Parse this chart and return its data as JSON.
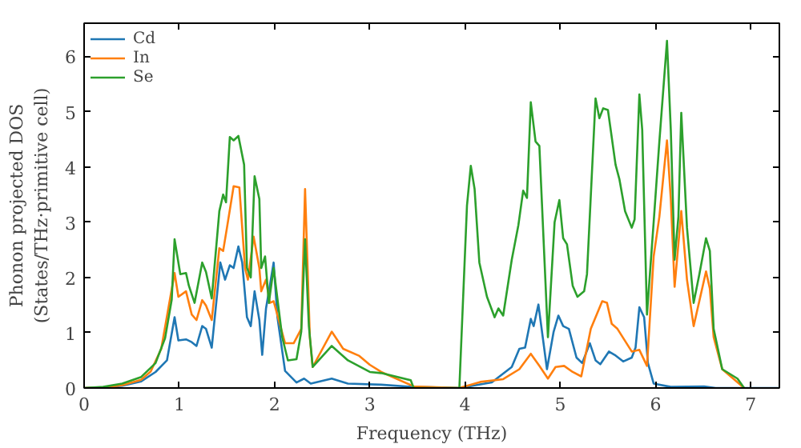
{
  "chart_data": {
    "type": "line",
    "xlabel": "Frequency (THz)",
    "ylabel": "Phonon projected DOS\n(States/THz·primitive cell)",
    "xlim": [
      0,
      7.3
    ],
    "ylim": [
      0,
      6.6
    ],
    "xticks": [
      0,
      1,
      2,
      3,
      4,
      5,
      6,
      7
    ],
    "yticks": [
      0,
      1,
      2,
      3,
      4,
      5,
      6
    ],
    "grid": false,
    "legend": "top left",
    "line_style": "solid",
    "marker": "none",
    "series": [
      {
        "name": "Cd",
        "color": "#1f77b4",
        "x": [
          0,
          0.2,
          0.4,
          0.6,
          0.75,
          0.87,
          0.95,
          0.99,
          1.07,
          1.13,
          1.18,
          1.24,
          1.28,
          1.34,
          1.43,
          1.48,
          1.53,
          1.57,
          1.62,
          1.66,
          1.71,
          1.75,
          1.79,
          1.84,
          1.87,
          1.91,
          1.95,
          1.99,
          2.03,
          2.11,
          2.23,
          2.31,
          2.38,
          2.6,
          2.77,
          3.12,
          3.46,
          3.94,
          4.28,
          4.49,
          4.57,
          4.63,
          4.69,
          4.72,
          4.77,
          4.86,
          4.93,
          4.98,
          5.03,
          5.09,
          5.17,
          5.23,
          5.31,
          5.37,
          5.42,
          5.51,
          5.57,
          5.66,
          5.75,
          5.79,
          5.83,
          5.88,
          5.92,
          5.98,
          6.16,
          6.51,
          6.63,
          7.3
        ],
        "values": [
          0,
          0.01,
          0.04,
          0.12,
          0.29,
          0.5,
          1.28,
          0.86,
          0.88,
          0.83,
          0.76,
          1.12,
          1.07,
          0.73,
          2.27,
          1.96,
          2.22,
          2.17,
          2.56,
          2.27,
          1.28,
          1.12,
          1.75,
          1.23,
          0.6,
          1.44,
          1.85,
          2.27,
          1.28,
          0.31,
          0.1,
          0.17,
          0.08,
          0.17,
          0.08,
          0.06,
          0.02,
          0,
          0.1,
          0.38,
          0.71,
          0.73,
          1.25,
          1.12,
          1.51,
          0.34,
          1.02,
          1.31,
          1.12,
          1.07,
          0.55,
          0.45,
          0.81,
          0.5,
          0.43,
          0.66,
          0.6,
          0.48,
          0.55,
          0.73,
          1.46,
          1.28,
          0.45,
          0.08,
          0.02,
          0.03,
          0,
          0
        ]
      },
      {
        "name": "In",
        "color": "#ff7f0e",
        "x": [
          0,
          0.2,
          0.4,
          0.6,
          0.7,
          0.81,
          0.95,
          0.99,
          1.07,
          1.13,
          1.18,
          1.24,
          1.28,
          1.34,
          1.42,
          1.46,
          1.5,
          1.57,
          1.63,
          1.69,
          1.72,
          1.78,
          1.84,
          1.86,
          1.91,
          1.95,
          1.99,
          2.11,
          2.2,
          2.28,
          2.32,
          2.37,
          2.4,
          2.6,
          2.72,
          2.89,
          3.0,
          3.12,
          3.46,
          3.94,
          4.16,
          4.4,
          4.57,
          4.69,
          4.78,
          4.87,
          4.95,
          5.04,
          5.13,
          5.22,
          5.32,
          5.44,
          5.49,
          5.54,
          5.6,
          5.75,
          5.83,
          5.91,
          5.98,
          6.04,
          6.12,
          6.16,
          6.2,
          6.27,
          6.33,
          6.4,
          6.53,
          6.57,
          6.61,
          6.7,
          6.93
        ],
        "values": [
          0,
          0.01,
          0.05,
          0.15,
          0.3,
          0.71,
          2.08,
          1.65,
          1.75,
          1.33,
          1.23,
          1.59,
          1.49,
          1.23,
          2.53,
          2.48,
          2.9,
          3.65,
          3.63,
          2.17,
          1.96,
          2.74,
          2.17,
          1.75,
          1.96,
          1.54,
          1.57,
          0.81,
          0.81,
          1.07,
          3.6,
          0.92,
          0.38,
          1.02,
          0.71,
          0.58,
          0.42,
          0.29,
          0.03,
          0,
          0.11,
          0.16,
          0.34,
          0.62,
          0.4,
          0.17,
          0.38,
          0.4,
          0.29,
          0.21,
          1.07,
          1.57,
          1.54,
          1.16,
          1.07,
          0.66,
          0.69,
          0.4,
          2.38,
          3.1,
          4.48,
          3.42,
          1.83,
          3.2,
          1.96,
          1.12,
          2.11,
          1.8,
          0.92,
          0.34,
          0
        ]
      },
      {
        "name": "Se",
        "color": "#2ca02c",
        "x": [
          0,
          0.2,
          0.4,
          0.6,
          0.75,
          0.85,
          0.92,
          0.95,
          1.01,
          1.07,
          1.1,
          1.16,
          1.24,
          1.28,
          1.34,
          1.42,
          1.46,
          1.49,
          1.53,
          1.57,
          1.62,
          1.68,
          1.71,
          1.75,
          1.79,
          1.84,
          1.86,
          1.9,
          1.94,
          1.99,
          2.02,
          2.08,
          2.14,
          2.23,
          2.28,
          2.32,
          2.36,
          2.4,
          2.6,
          2.77,
          3.0,
          3.12,
          3.43,
          3.46,
          3.94,
          4.02,
          4.06,
          4.1,
          4.15,
          4.23,
          4.31,
          4.35,
          4.4,
          4.49,
          4.56,
          4.61,
          4.65,
          4.69,
          4.74,
          4.78,
          4.87,
          4.94,
          4.99,
          5.03,
          5.07,
          5.13,
          5.18,
          5.25,
          5.28,
          5.37,
          5.41,
          5.45,
          5.5,
          5.58,
          5.62,
          5.68,
          5.75,
          5.78,
          5.83,
          5.86,
          5.91,
          5.98,
          6.04,
          6.12,
          6.16,
          6.2,
          6.24,
          6.27,
          6.33,
          6.4,
          6.46,
          6.53,
          6.57,
          6.61,
          6.7,
          6.86,
          6.93
        ],
        "values": [
          0,
          0.02,
          0.08,
          0.2,
          0.45,
          0.9,
          1.6,
          2.69,
          2.06,
          2.08,
          1.85,
          1.54,
          2.27,
          2.1,
          1.62,
          3.2,
          3.5,
          3.36,
          4.54,
          4.48,
          4.56,
          4.04,
          2.17,
          2.0,
          3.83,
          3.42,
          2.17,
          2.38,
          1.54,
          2.17,
          1.75,
          0.92,
          0.5,
          0.52,
          1.02,
          2.69,
          1.12,
          0.38,
          0.76,
          0.5,
          0.29,
          0.27,
          0.14,
          0,
          0,
          3.3,
          4.02,
          3.6,
          2.27,
          1.65,
          1.28,
          1.44,
          1.31,
          2.32,
          2.95,
          3.57,
          3.44,
          5.17,
          4.46,
          4.38,
          0.92,
          3.0,
          3.4,
          2.71,
          2.6,
          1.85,
          1.65,
          1.75,
          2.06,
          5.24,
          4.88,
          5.06,
          5.03,
          4.04,
          3.78,
          3.2,
          2.9,
          3.05,
          5.31,
          4.67,
          1.33,
          3.0,
          4.46,
          6.28,
          4.67,
          2.32,
          3.1,
          4.98,
          2.9,
          1.54,
          2.06,
          2.71,
          2.48,
          1.07,
          0.34,
          0.17,
          0
        ]
      }
    ]
  }
}
